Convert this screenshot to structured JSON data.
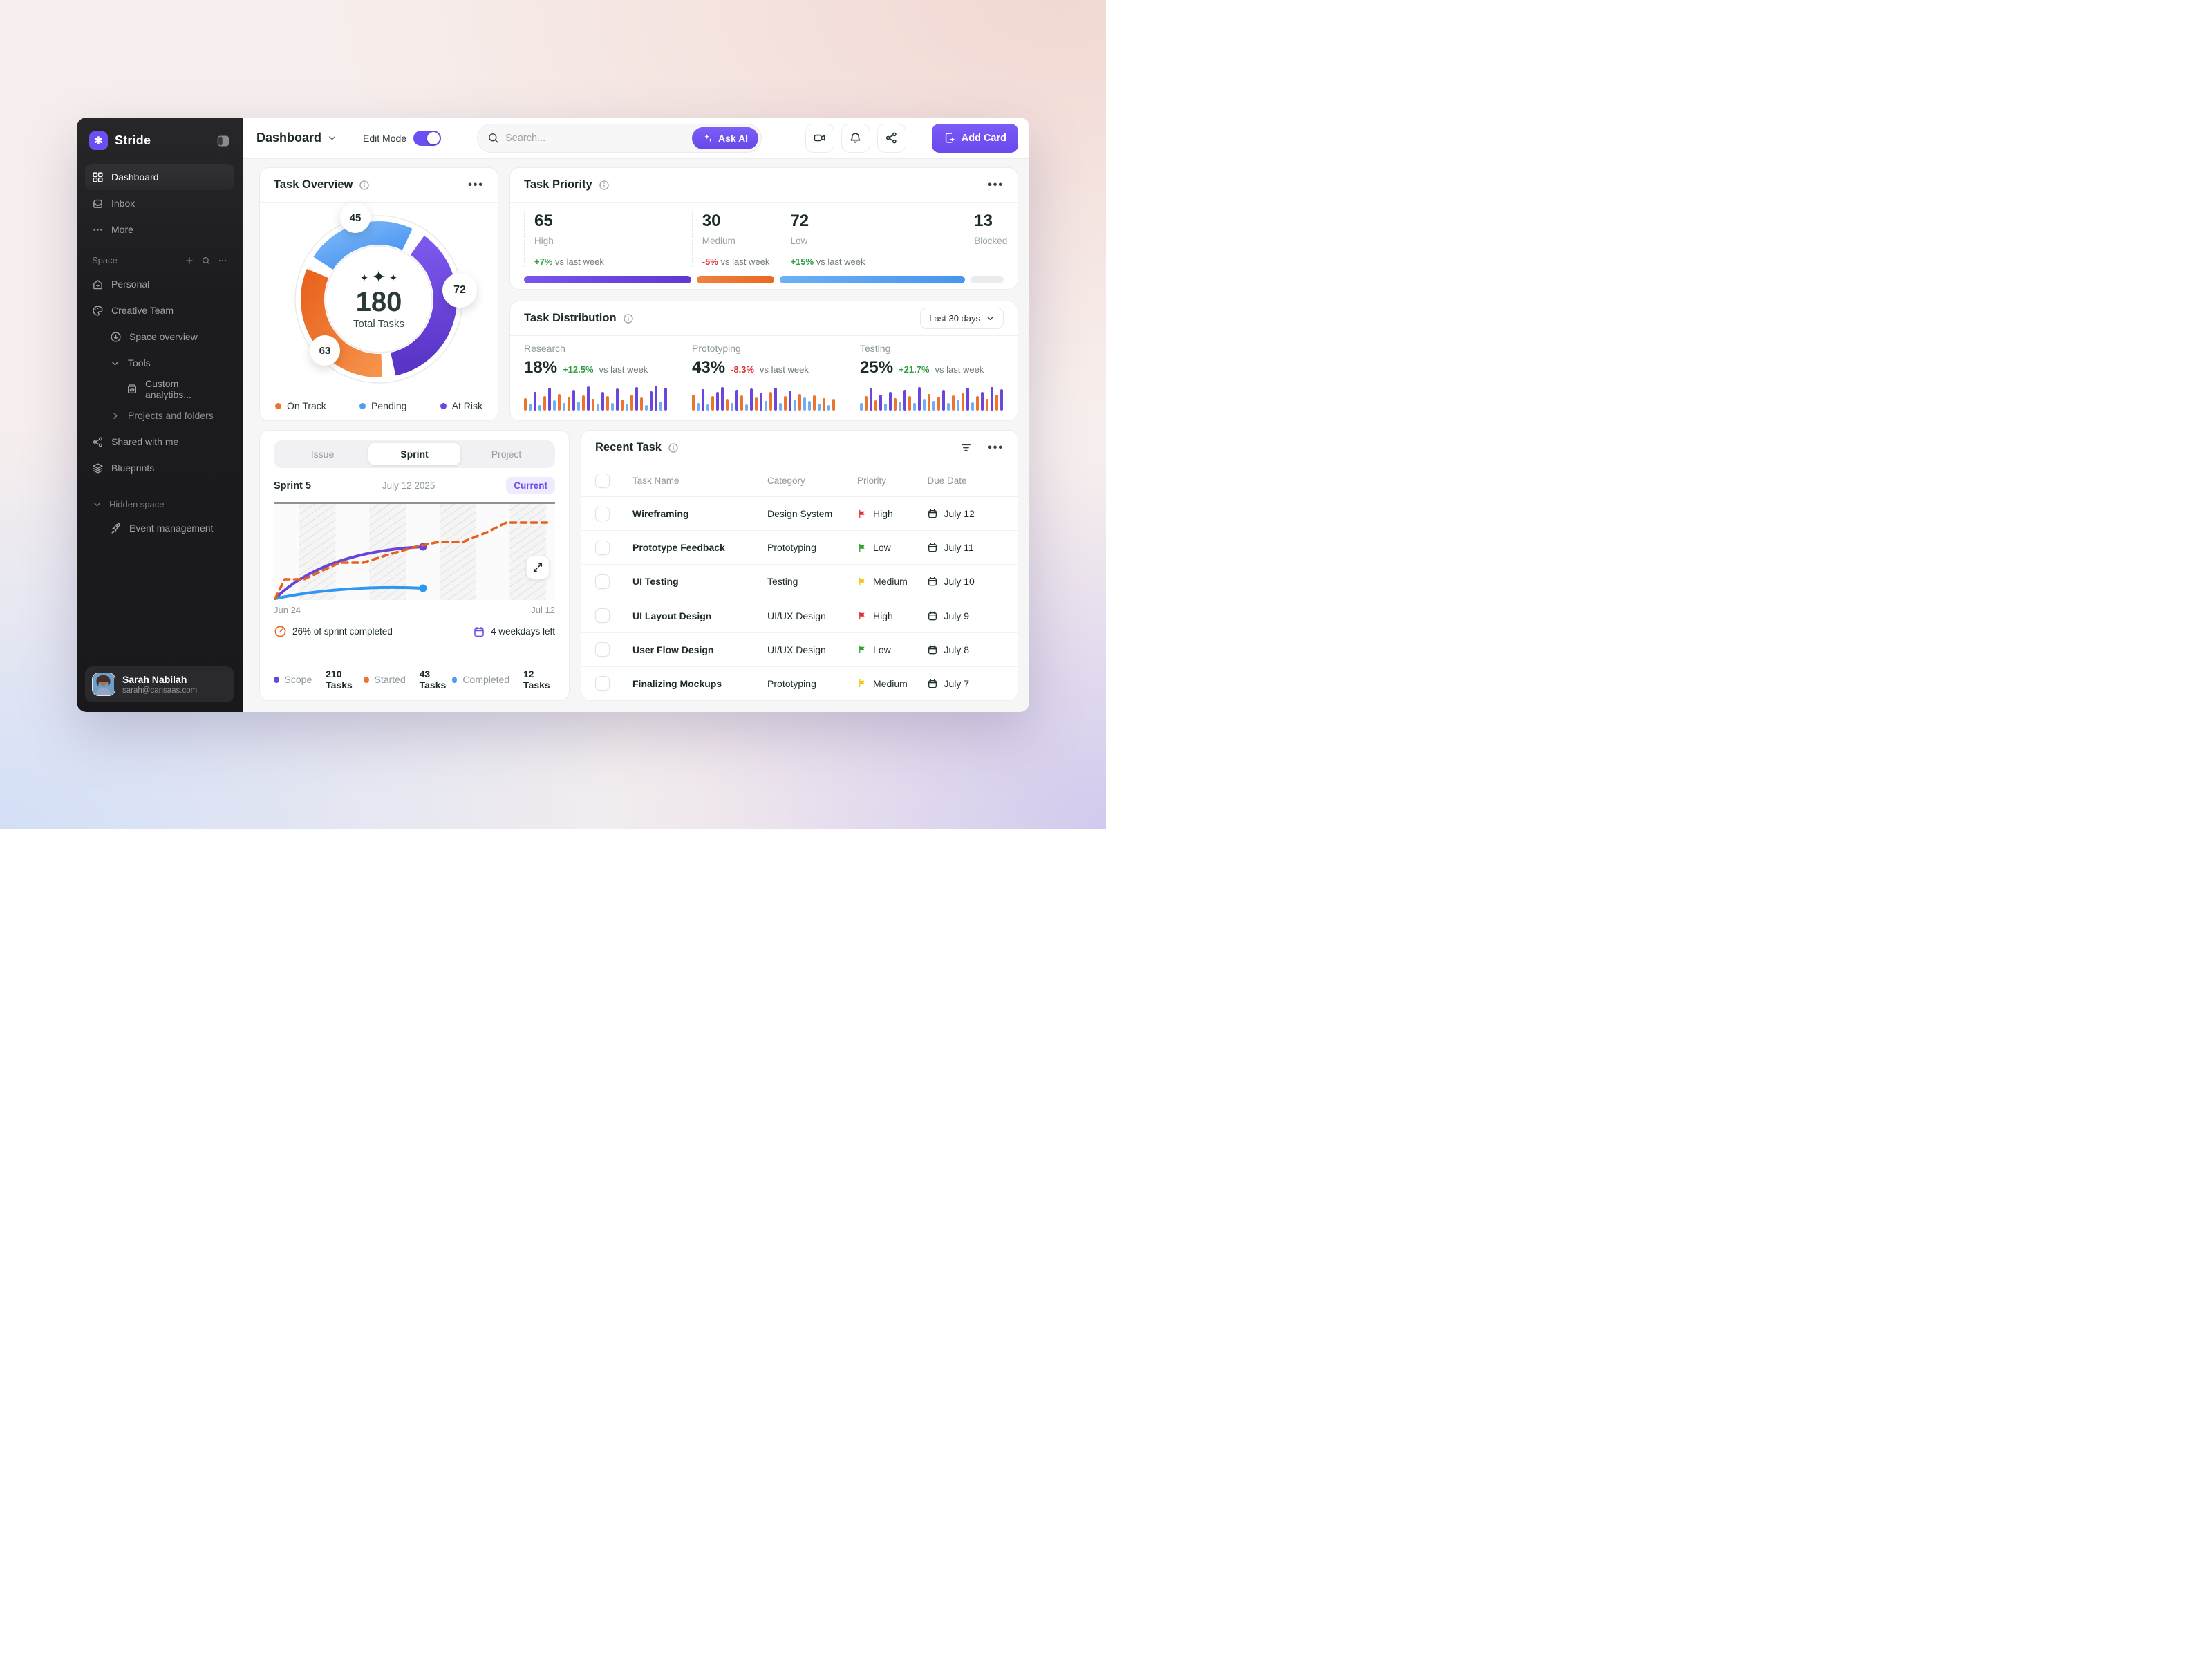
{
  "app": {
    "name": "Stride"
  },
  "colors": {
    "accent_purple": "#6D4EF0",
    "chart_purple": "#6A46DB",
    "chart_orange": "#ED7331",
    "chart_blue": "#4D9DF3",
    "bar_gray": "#ECECED",
    "positive_green": "#2F9E44",
    "negative_red": "#E03131",
    "flag_red": "#E03131",
    "flag_green": "#2DA32D",
    "flag_yellow": "#F2C511",
    "current_badge_bg": "#EFEAFE"
  },
  "sidebar": {
    "brand": "Stride",
    "nav": [
      {
        "label": "Dashboard",
        "active": true
      },
      {
        "label": "Inbox",
        "active": false
      },
      {
        "label": "More",
        "active": false
      }
    ],
    "space_label": "Space",
    "space_items": {
      "personal": "Personal",
      "creative_team": "Creative Team",
      "space_overview": "Space overview",
      "tools": "Tools",
      "custom_analytics": "Custom analytibs...",
      "projects_folders": "Projects and folders",
      "shared": "Shared with me",
      "blueprints": "Blueprints"
    },
    "hidden_label": "Hidden space",
    "hidden_item": "Event management",
    "user": {
      "name": "Sarah Nabilah",
      "email": "sarah@cansaas.com"
    }
  },
  "topbar": {
    "title": "Dashboard",
    "edit_mode_label": "Edit Mode",
    "edit_mode_on": true,
    "search_placeholder": "Search...",
    "ask_ai": "Ask AI",
    "add_card": "Add Card"
  },
  "overview": {
    "title": "Task Overview",
    "legend": [
      {
        "label": "On Track",
        "color": "#ED7331"
      },
      {
        "label": "Pending",
        "color": "#4D9DF3"
      },
      {
        "label": "At Risk",
        "color": "#6A46DB"
      }
    ]
  },
  "priority": {
    "title": "Task Priority"
  },
  "distribution": {
    "title": "Task Distribution",
    "range": "Last 30 days"
  },
  "sprint": {
    "tabs": [
      "Issue",
      "Sprint",
      "Project"
    ],
    "active_tab": "Sprint",
    "name": "Sprint 5",
    "date": "July 12 2025",
    "badge": "Current",
    "x_start": "Jun 24",
    "x_end": "Jul 12",
    "completed_note": "26% of sprint completed",
    "days_note": "4 weekdays left",
    "legend": [
      {
        "label": "Scope",
        "value": "210 Tasks",
        "color": "#6A46DB"
      },
      {
        "label": "Started",
        "value": "43 Tasks",
        "color": "#ED7331"
      },
      {
        "label": "Completed",
        "value": "12 Tasks",
        "color": "#4D9DF3"
      }
    ]
  },
  "recent": {
    "title": "Recent Task",
    "headers": [
      "Task Name",
      "Category",
      "Priority",
      "Due Date"
    ],
    "rows": [
      {
        "name": "Wireframing",
        "category": "Design System",
        "priority": "High",
        "flag": "#E03131",
        "due": "July 12"
      },
      {
        "name": "Prototype Feedback",
        "category": "Prototyping",
        "priority": "Low",
        "flag": "#2DA32D",
        "due": "July 11"
      },
      {
        "name": "UI Testing",
        "category": "Testing",
        "priority": "Medium",
        "flag": "#F2C511",
        "due": "July 10"
      },
      {
        "name": "UI Layout Design",
        "category": "UI/UX Design",
        "priority": "High",
        "flag": "#E03131",
        "due": "July 9"
      },
      {
        "name": "User Flow Design",
        "category": "UI/UX Design",
        "priority": "Low",
        "flag": "#2DA32D",
        "due": "July 8"
      },
      {
        "name": "Finalizing Mockups",
        "category": "Prototyping",
        "priority": "Medium",
        "flag": "#F2C511",
        "due": "July 7"
      }
    ]
  },
  "chart_data": [
    {
      "id": "task_overview_donut",
      "type": "pie",
      "title": "Task Overview",
      "total": 180,
      "center_value": "180",
      "center_label": "Total Tasks",
      "segments": [
        {
          "label": "Pending",
          "value": 45,
          "color": "#4D9DF3"
        },
        {
          "label": "At Risk",
          "value": 72,
          "color": "#6A46DB"
        },
        {
          "label": "On Track",
          "value": 63,
          "color": "#ED7331"
        }
      ],
      "legend_position": "bottom"
    },
    {
      "id": "task_priority",
      "type": "bar",
      "title": "Task Priority",
      "categories": [
        "High",
        "Medium",
        "Low",
        "Blocked"
      ],
      "values": [
        65,
        30,
        72,
        13
      ],
      "columns": [
        {
          "value": "65",
          "label": "High",
          "delta": "+7%",
          "delta_dir": "up",
          "suffix": "vs last week",
          "color": "#6A46DB"
        },
        {
          "value": "30",
          "label": "Medium",
          "delta": "-5%",
          "delta_dir": "down",
          "suffix": "vs last week",
          "color": "#ED7331"
        },
        {
          "value": "72",
          "label": "Low",
          "delta": "+15%",
          "delta_dir": "up",
          "suffix": "vs last week",
          "color": "#4D9DF3"
        },
        {
          "value": "13",
          "label": "Blocked",
          "delta": "",
          "delta_dir": "",
          "suffix": "",
          "color": "#ECECED"
        }
      ]
    },
    {
      "id": "task_distribution",
      "type": "bar",
      "title": "Task Distribution",
      "range_label": "Last 30 days",
      "bar_colors": {
        "o": "#ED7331",
        "b": "#6FAEF5",
        "p": "#6A46DB"
      },
      "columns": [
        {
          "label": "Research",
          "value": "18%",
          "delta": "+12.5%",
          "delta_dir": "up",
          "suffix": "vs last week",
          "bars": [
            [
              48,
              "o"
            ],
            [
              26,
              "b"
            ],
            [
              70,
              "p"
            ],
            [
              22,
              "b"
            ],
            [
              55,
              "o"
            ],
            [
              88,
              "p"
            ],
            [
              40,
              "b"
            ],
            [
              62,
              "o"
            ],
            [
              30,
              "b"
            ],
            [
              52,
              "o"
            ],
            [
              78,
              "p"
            ],
            [
              34,
              "b"
            ],
            [
              58,
              "o"
            ],
            [
              92,
              "p"
            ],
            [
              46,
              "o"
            ],
            [
              24,
              "b"
            ],
            [
              70,
              "p"
            ],
            [
              55,
              "o"
            ],
            [
              30,
              "b"
            ],
            [
              84,
              "p"
            ],
            [
              42,
              "o"
            ],
            [
              26,
              "b"
            ],
            [
              60,
              "o"
            ],
            [
              90,
              "p"
            ],
            [
              50,
              "o"
            ],
            [
              22,
              "b"
            ],
            [
              74,
              "p"
            ],
            [
              96,
              "p"
            ],
            [
              34,
              "b"
            ],
            [
              88,
              "p"
            ]
          ]
        },
        {
          "label": "Prototyping",
          "value": "43%",
          "delta": "-8.3%",
          "delta_dir": "down",
          "suffix": "vs last week",
          "bars": [
            [
              60,
              "o"
            ],
            [
              28,
              "b"
            ],
            [
              82,
              "p"
            ],
            [
              24,
              "b"
            ],
            [
              55,
              "o"
            ],
            [
              70,
              "p"
            ],
            [
              90,
              "p"
            ],
            [
              46,
              "o"
            ],
            [
              30,
              "b"
            ],
            [
              78,
              "p"
            ],
            [
              58,
              "o"
            ],
            [
              24,
              "b"
            ],
            [
              85,
              "p"
            ],
            [
              50,
              "o"
            ],
            [
              65,
              "p"
            ],
            [
              36,
              "b"
            ],
            [
              72,
              "o"
            ],
            [
              88,
              "p"
            ],
            [
              30,
              "b"
            ],
            [
              55,
              "o"
            ],
            [
              76,
              "p"
            ],
            [
              42,
              "b"
            ],
            [
              62,
              "o"
            ],
            [
              50,
              "b"
            ],
            [
              38,
              "b"
            ],
            [
              58,
              "o"
            ],
            [
              26,
              "b"
            ],
            [
              48,
              "o"
            ],
            [
              20,
              "b"
            ],
            [
              44,
              "o"
            ]
          ]
        },
        {
          "label": "Testing",
          "value": "25%",
          "delta": "+21.7%",
          "delta_dir": "up",
          "suffix": "vs last week",
          "bars": [
            [
              30,
              "b"
            ],
            [
              55,
              "o"
            ],
            [
              85,
              "p"
            ],
            [
              40,
              "o"
            ],
            [
              60,
              "p"
            ],
            [
              26,
              "b"
            ],
            [
              70,
              "p"
            ],
            [
              48,
              "o"
            ],
            [
              34,
              "b"
            ],
            [
              80,
              "p"
            ],
            [
              55,
              "o"
            ],
            [
              30,
              "b"
            ],
            [
              90,
              "p"
            ],
            [
              44,
              "b"
            ],
            [
              62,
              "o"
            ],
            [
              36,
              "b"
            ],
            [
              52,
              "o"
            ],
            [
              78,
              "p"
            ],
            [
              28,
              "b"
            ],
            [
              58,
              "o"
            ],
            [
              40,
              "b"
            ],
            [
              66,
              "o"
            ],
            [
              86,
              "p"
            ],
            [
              32,
              "b"
            ],
            [
              54,
              "o"
            ],
            [
              72,
              "p"
            ],
            [
              46,
              "o"
            ],
            [
              90,
              "p"
            ],
            [
              60,
              "o"
            ],
            [
              82,
              "p"
            ]
          ]
        }
      ]
    },
    {
      "id": "sprint_burndown",
      "type": "line",
      "tab": "Sprint",
      "sprint_name": "Sprint 5",
      "sprint_date": "July 12 2025",
      "status": "Current",
      "x_range": [
        "Jun 24",
        "Jul 12"
      ],
      "series": [
        {
          "name": "Scope",
          "tasks": 210,
          "color": "#6A46DB",
          "style": "solid"
        },
        {
          "name": "Started",
          "tasks": 43,
          "color": "#ED7331",
          "style": "dashed"
        },
        {
          "name": "Completed",
          "tasks": 12,
          "color": "#4D9DF3",
          "style": "solid"
        }
      ],
      "annotations": [
        "26% of sprint completed",
        "4 weekdays left"
      ],
      "grid": "weekend-hatch-bands"
    }
  ]
}
